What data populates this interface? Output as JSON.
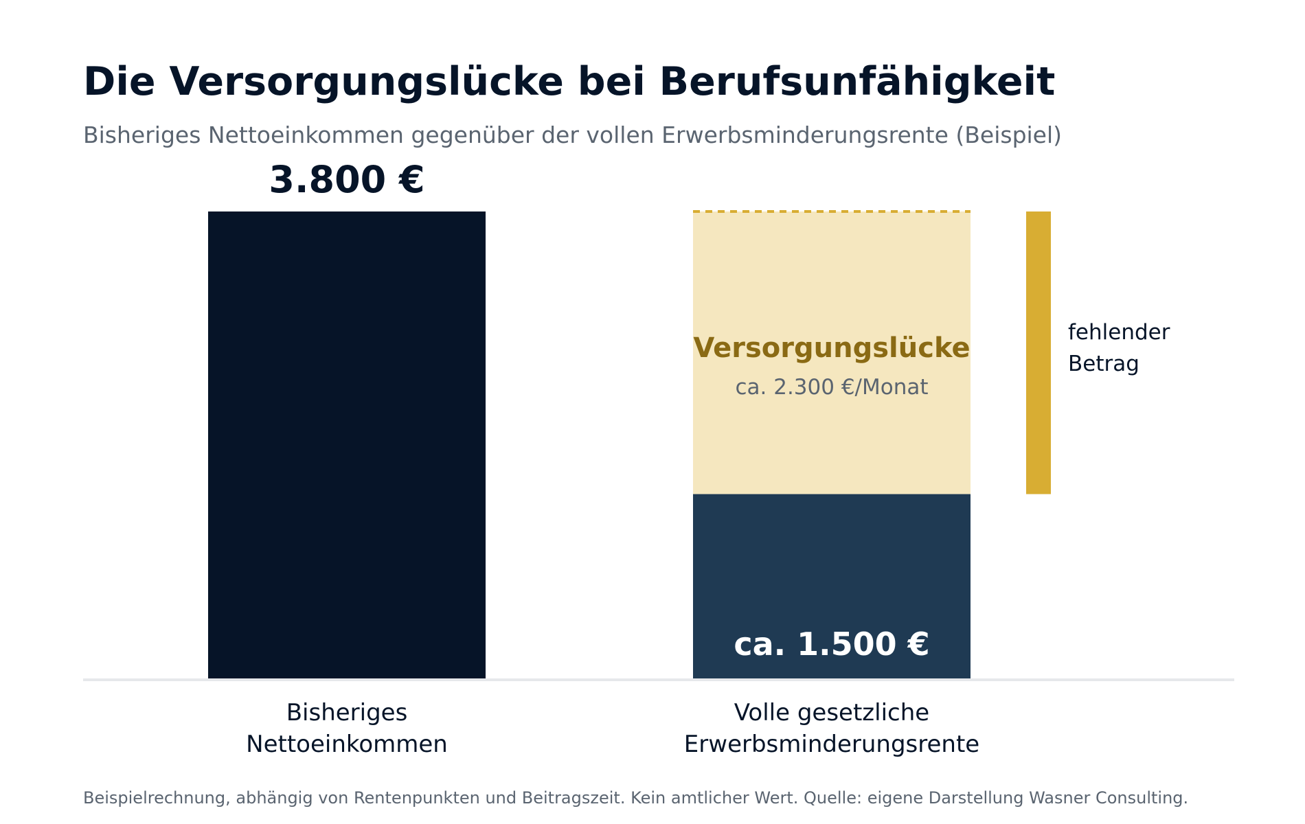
{
  "title": "Die Versorgungslücke bei Berufsunfähigkeit",
  "subtitle": "Bisheriges Nettoeinkommen gegenüber der vollen Erwerbsminderungsrente (Beispiel)",
  "footnote": "Beispielrechnung, abhängig von Rentenpunkten und Beitragszeit. Kein amtlicher Wert. Quelle: eigene Darstellung Wasner Consulting.",
  "colors": {
    "income": "#061428",
    "pension": "#1f3a53",
    "gap_fill": "#f5e7bf",
    "gap_line": "#d8ad33",
    "gap_bracket": "#d8ad33",
    "gap_label": "#8a6a14",
    "gap_sub": "#5a6470",
    "axis": "#e6e8eb",
    "text_dark": "#061428",
    "text_light": "#ffffff"
  },
  "chart_data": {
    "type": "bar",
    "categories": [
      [
        "Bisheriges",
        "Nettoeinkommen"
      ],
      [
        "Volle gesetzliche",
        "Erwerbsminderungsrente"
      ]
    ],
    "income": {
      "value": 3800,
      "label": "3.800 €"
    },
    "pension": {
      "value": 1500,
      "label": "ca. 1.500 €"
    },
    "gap": {
      "value": 2300,
      "label": "Versorgungslücke",
      "sublabel": "ca. 2.300 €/Monat",
      "bracket_label": [
        "fehlender",
        "Betrag"
      ]
    },
    "ylim": [
      0,
      3800
    ]
  }
}
